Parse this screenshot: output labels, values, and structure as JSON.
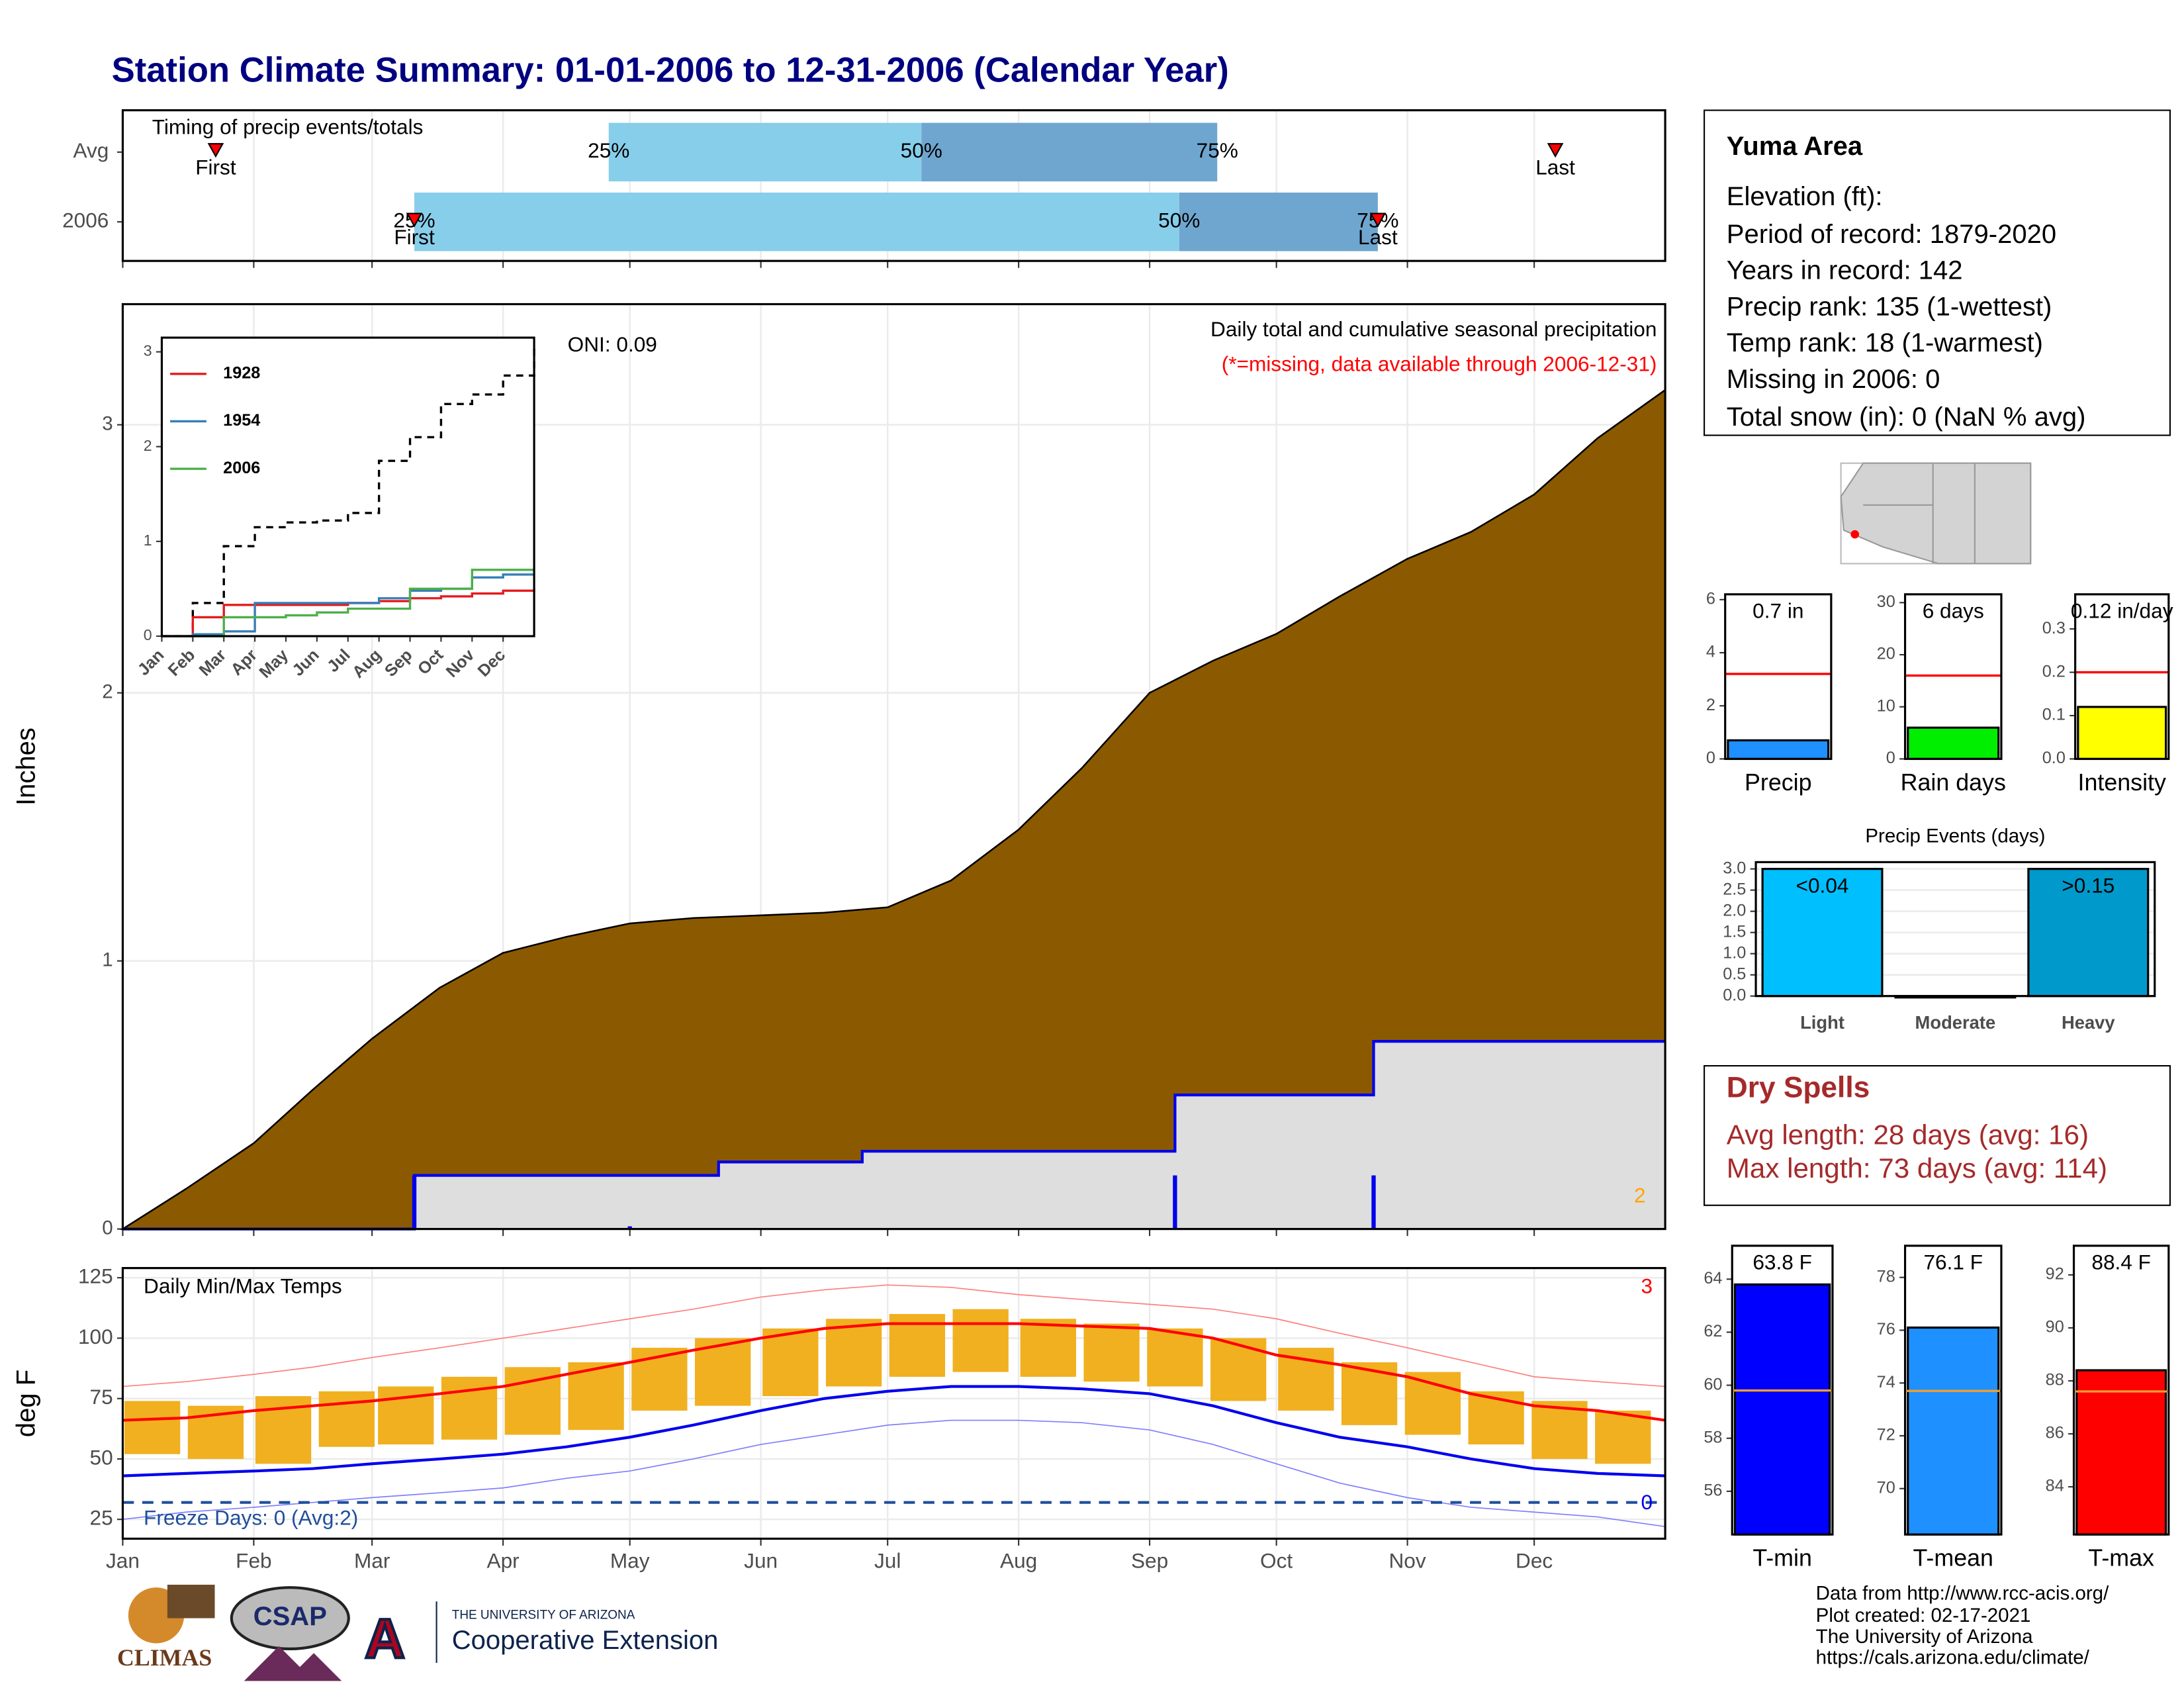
{
  "title": "Station Climate Summary: 01-01-2006 to 12-31-2006 (Calendar Year)",
  "info_box": {
    "station": "Yuma Area",
    "lines": [
      "Elevation (ft):",
      "Period of record: 1879-2020",
      "Years in record: 142",
      "Precip rank: 135 (1-wettest)",
      "Temp rank: 18 (1-warmest)",
      "Missing in 2006: 0",
      "Total snow (in): 0 (NaN % avg)"
    ]
  },
  "dry_spells": {
    "title": "Dry Spells",
    "lines": [
      "Avg length: 28 days (avg: 16)",
      "Max length: 73 days (avg: 114)"
    ]
  },
  "footer": {
    "logos": [
      "CLIMAS",
      "CSAP",
      "THE UNIVERSITY OF ARIZONA",
      "Cooperative Extension"
    ],
    "credits": [
      "Data from http://www.rcc-acis.org/",
      "Plot created: 02-17-2021",
      "The University of Arizona",
      "https://cals.arizona.edu/climate/"
    ]
  },
  "chart_data": [
    {
      "type": "timing",
      "title": "Timing of precip events/totals",
      "xlim": [
        0,
        365
      ],
      "xticks": [
        0,
        31,
        59,
        90,
        120,
        151,
        181,
        212,
        243,
        273,
        304,
        334
      ],
      "colors": [
        "#87ceeb",
        "#6fa6cf"
      ],
      "labels": {
        "first": "First",
        "last": "Last",
        "p25": "25%",
        "p50": "50%",
        "p75": "75%"
      },
      "rows": [
        {
          "name": "Avg",
          "first": 22,
          "p25": 115,
          "p50": 189,
          "p75": 259,
          "last": 339
        },
        {
          "name": "2006",
          "first": 69,
          "p25": 69,
          "p50": 250,
          "p75": 297,
          "last": 297
        }
      ]
    },
    {
      "type": "area",
      "ylabel": "Inches",
      "oni": "ONI: 0.09",
      "subtitle": "Daily total and cumulative seasonal precipitation",
      "note": "(*=missing, data available through 2006-12-31)",
      "missing_count": 2,
      "xlim": [
        0,
        365
      ],
      "xticks": [
        0,
        31,
        59,
        90,
        120,
        151,
        181,
        212,
        243,
        273,
        304,
        334
      ],
      "ylim": [
        0,
        3.45
      ],
      "yticks": [
        0,
        1,
        2,
        3
      ],
      "grid": true,
      "series": [
        {
          "style": "area",
          "color": "#8b5a00",
          "x": [
            0,
            15,
            31,
            45,
            59,
            75,
            90,
            105,
            120,
            135,
            151,
            166,
            181,
            196,
            212,
            227,
            243,
            258,
            273,
            288,
            304,
            319,
            334,
            349,
            365
          ],
          "values": [
            0,
            0.15,
            0.32,
            0.52,
            0.71,
            0.9,
            1.03,
            1.09,
            1.14,
            1.16,
            1.17,
            1.18,
            1.2,
            1.3,
            1.49,
            1.72,
            2.0,
            2.12,
            2.22,
            2.36,
            2.5,
            2.6,
            2.74,
            2.95,
            3.13
          ]
        },
        {
          "style": "step",
          "color": "#0000ee",
          "fill": "#dedede",
          "x": [
            0,
            69,
            141,
            175,
            249,
            296,
            365
          ],
          "values": [
            0,
            0.2,
            0.25,
            0.29,
            0.5,
            0.7,
            0.7
          ]
        },
        {
          "style": "bars",
          "color": "#0000ee",
          "x": [
            69,
            120,
            249,
            296
          ],
          "values": [
            0.2,
            0.01,
            0.2,
            0.2
          ]
        }
      ]
    },
    {
      "type": "line",
      "xlim": [
        0,
        12
      ],
      "xticks": [
        {
          "value": 0,
          "label": "Jan"
        },
        {
          "value": 1,
          "label": "Feb"
        },
        {
          "value": 2,
          "label": "Mar"
        },
        {
          "value": 3,
          "label": "Apr"
        },
        {
          "value": 4,
          "label": "May"
        },
        {
          "value": 5,
          "label": "Jun"
        },
        {
          "value": 6,
          "label": "Jul"
        },
        {
          "value": 7,
          "label": "Aug"
        },
        {
          "value": 8,
          "label": "Sep"
        },
        {
          "value": 9,
          "label": "Oct"
        },
        {
          "value": 10,
          "label": "Nov"
        },
        {
          "value": 11,
          "label": "Dec"
        }
      ],
      "ylim": [
        0,
        3.15
      ],
      "yticks": [
        0,
        1,
        2,
        3
      ],
      "x": [
        0,
        1,
        2,
        3,
        4,
        5,
        6,
        7,
        8,
        9,
        10,
        11,
        12
      ],
      "series": [
        {
          "color": "#000000",
          "dashed": true,
          "values": [
            0,
            0.35,
            0.95,
            1.15,
            1.2,
            1.22,
            1.3,
            1.85,
            2.1,
            2.45,
            2.55,
            2.75,
            3.05
          ]
        },
        {
          "name": "1928",
          "color": "#e41a1c",
          "values": [
            0,
            0.2,
            0.33,
            0.33,
            0.33,
            0.33,
            0.35,
            0.37,
            0.4,
            0.42,
            0.45,
            0.48,
            0.5
          ]
        },
        {
          "name": "1954",
          "color": "#377eb8",
          "values": [
            0,
            0.02,
            0.05,
            0.35,
            0.35,
            0.35,
            0.35,
            0.4,
            0.48,
            0.5,
            0.62,
            0.65,
            0.65
          ]
        },
        {
          "name": "2006",
          "color": "#4daf4a",
          "values": [
            0,
            0,
            0.2,
            0.2,
            0.22,
            0.25,
            0.29,
            0.29,
            0.5,
            0.5,
            0.7,
            0.7,
            0.7
          ]
        }
      ]
    },
    {
      "type": "temperature",
      "title": "Daily Min/Max Temps",
      "ylabel": "deg F",
      "freeze_text": "Freeze Days: 0 (Avg:2)",
      "freeze_line": 32,
      "freeze_count": 0,
      "record_count": 3,
      "xlim": [
        0,
        365
      ],
      "xticks": [
        {
          "value": 0,
          "label": "Jan"
        },
        {
          "value": 31,
          "label": "Feb"
        },
        {
          "value": 59,
          "label": "Mar"
        },
        {
          "value": 90,
          "label": "Apr"
        },
        {
          "value": 120,
          "label": "May"
        },
        {
          "value": 151,
          "label": "Jun"
        },
        {
          "value": 181,
          "label": "Jul"
        },
        {
          "value": 212,
          "label": "Aug"
        },
        {
          "value": 243,
          "label": "Sep"
        },
        {
          "value": 273,
          "label": "Oct"
        },
        {
          "value": 304,
          "label": "Nov"
        },
        {
          "value": 334,
          "label": "Dec"
        }
      ],
      "ylim": [
        17,
        129
      ],
      "yticks": [
        25,
        50,
        75,
        100,
        125
      ],
      "grid": true,
      "x": [
        0,
        15,
        31,
        45,
        59,
        75,
        90,
        105,
        120,
        135,
        151,
        166,
        181,
        196,
        212,
        227,
        243,
        258,
        273,
        288,
        304,
        319,
        334,
        349,
        365
      ],
      "series": [
        {
          "color": "#ff7f7f",
          "width": 0.8,
          "values": [
            80,
            82,
            85,
            88,
            92,
            96,
            100,
            104,
            108,
            112,
            117,
            120,
            122,
            121,
            118,
            116,
            114,
            112,
            108,
            102,
            96,
            90,
            84,
            82,
            80
          ]
        },
        {
          "color": "#7f7fff",
          "width": 0.8,
          "values": [
            25,
            28,
            30,
            32,
            34,
            36,
            38,
            42,
            45,
            50,
            56,
            60,
            64,
            66,
            66,
            65,
            62,
            56,
            48,
            40,
            34,
            30,
            28,
            26,
            22
          ]
        },
        {
          "color": "#ff0000",
          "width": 2,
          "values": [
            66,
            67,
            70,
            72,
            74,
            77,
            80,
            85,
            90,
            95,
            100,
            104,
            106,
            106,
            106,
            105,
            104,
            100,
            93,
            89,
            84,
            77,
            72,
            70,
            66
          ]
        },
        {
          "color": "#0000ee",
          "width": 2,
          "values": [
            43,
            44,
            45,
            46,
            48,
            50,
            52,
            55,
            59,
            64,
            70,
            75,
            78,
            80,
            80,
            79,
            77,
            72,
            65,
            59,
            55,
            50,
            46,
            44,
            43
          ]
        }
      ],
      "bars": {
        "color": "#f0b020",
        "x": [
          7,
          22,
          38,
          53,
          67,
          82,
          97,
          112,
          127,
          142,
          158,
          173,
          188,
          203,
          219,
          234,
          249,
          264,
          280,
          295,
          310,
          325,
          340,
          355
        ],
        "low": [
          52,
          50,
          48,
          55,
          56,
          58,
          60,
          62,
          70,
          72,
          76,
          80,
          84,
          86,
          84,
          82,
          80,
          74,
          70,
          64,
          60,
          56,
          50,
          48
        ],
        "high": [
          74,
          72,
          76,
          78,
          80,
          84,
          88,
          90,
          96,
          100,
          104,
          108,
          110,
          112,
          108,
          106,
          104,
          100,
          96,
          90,
          86,
          78,
          74,
          70
        ]
      }
    },
    {
      "type": "bar",
      "categories": [
        "Precip"
      ],
      "values": [
        0.7
      ],
      "value_labels": [
        "0.7 in"
      ],
      "average": 3.2,
      "average_color": "#ff0000",
      "color": "#1e90ff",
      "ylim": [
        0,
        6.2
      ],
      "yticks": [
        0,
        2,
        4,
        6
      ]
    },
    {
      "type": "bar",
      "categories": [
        "Rain days"
      ],
      "values": [
        6
      ],
      "value_labels": [
        "6 days"
      ],
      "average": 16,
      "average_color": "#ff0000",
      "color": "#00ee00",
      "ylim": [
        0,
        31.6
      ],
      "yticks": [
        0,
        10,
        20,
        30
      ]
    },
    {
      "type": "bar",
      "categories": [
        "Intensity"
      ],
      "values": [
        0.12
      ],
      "value_labels": [
        "0.12 in/day"
      ],
      "average": 0.2,
      "average_color": "#ff0000",
      "color": "#ffff00",
      "ylim": [
        0,
        0.38
      ],
      "yticks": [
        {
          "value": 0,
          "label": "0.0"
        },
        0.1,
        0.2,
        0.3
      ]
    },
    {
      "type": "bar",
      "title": "Precip Events (days)",
      "categories": [
        "Light",
        "Moderate",
        "Heavy"
      ],
      "values": [
        3,
        0,
        3
      ],
      "thresholds": [
        "<0.04",
        null,
        ">0.15"
      ],
      "colors": [
        "#00bfff",
        "#1e5fa0",
        "#0099cc"
      ],
      "ylim": [
        0,
        3.16
      ],
      "grid": true,
      "yticks": [
        {
          "value": 0,
          "label": "0.0"
        },
        0.5,
        {
          "value": 1,
          "label": "1.0"
        },
        1.5,
        {
          "value": 2,
          "label": "2.0"
        },
        2.5,
        {
          "value": 3,
          "label": "3.0"
        }
      ]
    },
    {
      "type": "bar",
      "categories": [
        "T-min"
      ],
      "values": [
        63.8
      ],
      "value_labels": [
        "63.8 F"
      ],
      "average": 59.8,
      "average_color": "#f0a030",
      "color": "#0000ff",
      "ylim": [
        54.37,
        65.26
      ],
      "yticks": [
        56,
        58,
        60,
        62,
        64
      ]
    },
    {
      "type": "bar",
      "categories": [
        "T-mean"
      ],
      "values": [
        76.1
      ],
      "value_labels": [
        "76.1 F"
      ],
      "average": 73.7,
      "average_color": "#f0a030",
      "color": "#1e90ff",
      "ylim": [
        68.26,
        79.2
      ],
      "yticks": [
        70,
        72,
        74,
        76,
        78
      ]
    },
    {
      "type": "bar",
      "categories": [
        "T-max"
      ],
      "values": [
        88.4
      ],
      "value_labels": [
        "88.4 F"
      ],
      "average": 87.6,
      "average_color": "#f0a030",
      "color": "#ff0000",
      "ylim": [
        82.2,
        93.1
      ],
      "yticks": [
        84,
        86,
        88,
        90,
        92
      ]
    }
  ]
}
